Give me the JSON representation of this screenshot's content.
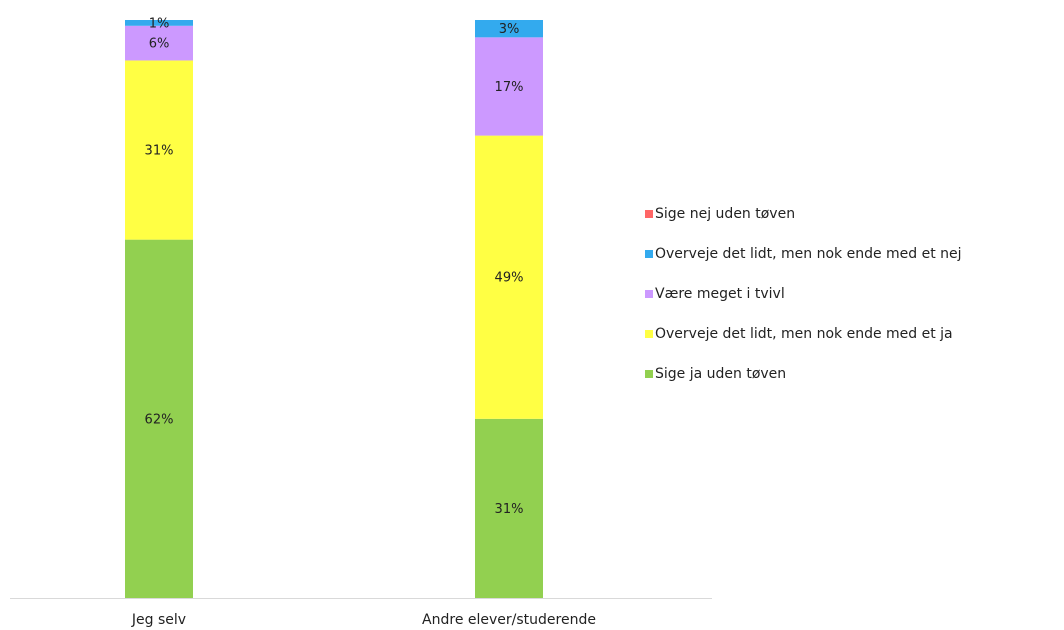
{
  "chart_data": {
    "type": "stacked_bar",
    "categories": [
      "Jeg selv",
      "Andre elever/studerende"
    ],
    "series": [
      {
        "name": "Sige ja uden tøven",
        "color": "#92d050",
        "values": [
          62,
          31
        ],
        "value_labels": [
          "62%",
          "31%"
        ]
      },
      {
        "name": "Overveje det lidt, men nok ende med et ja",
        "color": "#ffff44",
        "values": [
          31,
          49
        ],
        "value_labels": [
          "31%",
          "49%"
        ]
      },
      {
        "name": "Være meget i tvivl",
        "color": "#cc99ff",
        "values": [
          6,
          17
        ],
        "value_labels": [
          "6%",
          "17%"
        ]
      },
      {
        "name": "Overveje det lidt, men nok ende med et nej",
        "color": "#33aaee",
        "values": [
          1,
          3
        ],
        "value_labels": [
          "1%",
          "3%"
        ]
      },
      {
        "name": "Sige nej uden tøven",
        "color": "#ff6666",
        "values": [
          0,
          0
        ]
      }
    ],
    "legend": "right"
  }
}
